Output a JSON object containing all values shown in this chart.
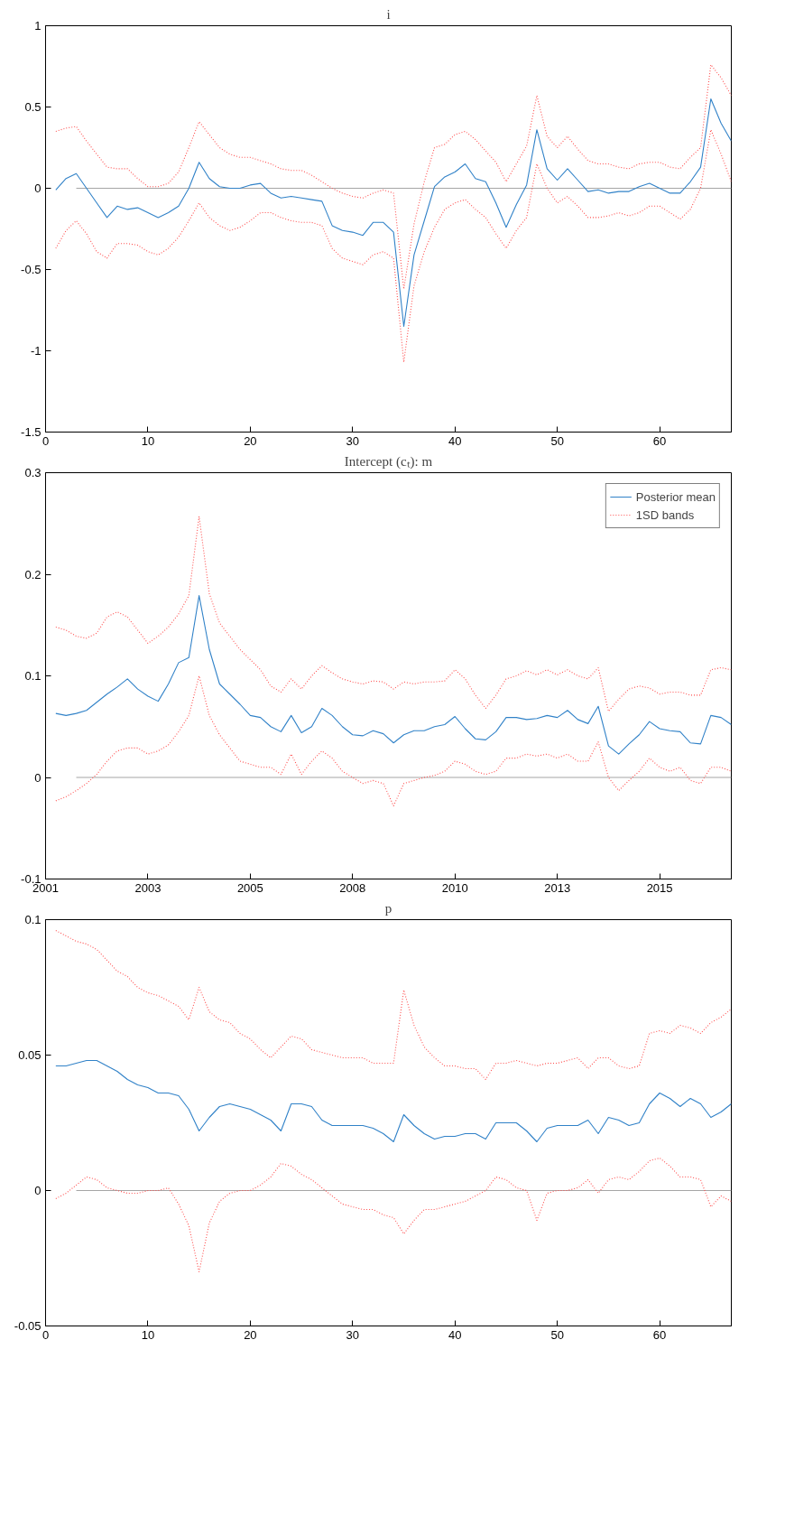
{
  "chart_data": [
    {
      "type": "line",
      "title": "i",
      "xlim": [
        0,
        67
      ],
      "xticks": [
        0,
        10,
        20,
        30,
        40,
        50,
        60
      ],
      "ylim": [
        -1.5,
        1
      ],
      "yticks": [
        -1.5,
        -1,
        -0.5,
        0,
        0.5,
        1
      ],
      "x": [
        1,
        2,
        3,
        4,
        5,
        6,
        7,
        8,
        9,
        10,
        11,
        12,
        13,
        14,
        15,
        16,
        17,
        18,
        19,
        20,
        21,
        22,
        23,
        24,
        25,
        26,
        27,
        28,
        29,
        30,
        31,
        32,
        33,
        34,
        35,
        36,
        37,
        38,
        39,
        40,
        41,
        42,
        43,
        44,
        45,
        46,
        47,
        48,
        49,
        50,
        51,
        52,
        53,
        54,
        55,
        56,
        57,
        58,
        59,
        60,
        61,
        62,
        63,
        64,
        65,
        66,
        67
      ],
      "series": [
        {
          "color": "#a6a6a6",
          "line_style": "solid",
          "values": [
            null,
            null,
            0,
            0,
            0,
            0,
            0,
            0,
            0,
            0,
            0,
            0,
            0,
            0,
            0,
            0,
            0,
            0,
            0,
            0,
            0,
            0,
            0,
            0,
            0,
            0,
            0,
            0,
            0,
            0,
            0,
            0,
            0,
            0,
            0,
            0,
            0,
            0,
            0,
            0,
            0,
            0,
            0,
            0,
            0,
            0,
            0,
            0,
            0,
            0,
            0,
            0,
            0,
            0,
            0,
            0,
            0,
            0,
            0,
            0,
            0,
            0,
            0,
            0,
            0,
            0,
            0
          ]
        },
        {
          "color": "#ff4d4d",
          "line_style": "dotted",
          "values": [
            0.35,
            0.37,
            0.38,
            0.29,
            0.21,
            0.13,
            0.12,
            0.12,
            0.06,
            0.01,
            0.01,
            0.03,
            0.1,
            0.25,
            0.41,
            0.33,
            0.25,
            0.21,
            0.19,
            0.19,
            0.17,
            0.15,
            0.12,
            0.11,
            0.11,
            0.08,
            0.04,
            0,
            -0.03,
            -0.05,
            -0.06,
            -0.03,
            -0.01,
            -0.03,
            -0.62,
            -0.22,
            0.04,
            0.25,
            0.27,
            0.33,
            0.35,
            0.3,
            0.23,
            0.16,
            0.04,
            0.15,
            0.26,
            0.57,
            0.32,
            0.25,
            0.32,
            0.24,
            0.17,
            0.15,
            0.15,
            0.13,
            0.12,
            0.15,
            0.16,
            0.16,
            0.13,
            0.12,
            0.19,
            0.25,
            0.76,
            0.68,
            0.57
          ]
        },
        {
          "color": "#ff4d4d",
          "line_style": "dotted",
          "values": [
            -0.37,
            -0.26,
            -0.2,
            -0.28,
            -0.39,
            -0.43,
            -0.34,
            -0.34,
            -0.35,
            -0.39,
            -0.41,
            -0.37,
            -0.3,
            -0.2,
            -0.09,
            -0.18,
            -0.23,
            -0.26,
            -0.24,
            -0.2,
            -0.15,
            -0.15,
            -0.18,
            -0.2,
            -0.21,
            -0.21,
            -0.23,
            -0.37,
            -0.43,
            -0.45,
            -0.47,
            -0.41,
            -0.39,
            -0.43,
            -1.07,
            -0.6,
            -0.39,
            -0.24,
            -0.13,
            -0.09,
            -0.07,
            -0.13,
            -0.18,
            -0.28,
            -0.37,
            -0.26,
            -0.18,
            0.15,
            0,
            -0.09,
            -0.05,
            -0.11,
            -0.18,
            -0.18,
            -0.17,
            -0.15,
            -0.17,
            -0.15,
            -0.11,
            -0.11,
            -0.15,
            -0.19,
            -0.13,
            0,
            0.36,
            0.21,
            0.04
          ]
        },
        {
          "color": "#3182c8",
          "line_style": "solid",
          "values": [
            -0.01,
            0.06,
            0.09,
            0,
            -0.09,
            -0.18,
            -0.11,
            -0.13,
            -0.12,
            -0.15,
            -0.18,
            -0.15,
            -0.11,
            0,
            0.16,
            0.06,
            0.01,
            0,
            0,
            0.02,
            0.03,
            -0.03,
            -0.06,
            -0.05,
            -0.06,
            -0.07,
            -0.08,
            -0.23,
            -0.26,
            -0.27,
            -0.29,
            -0.21,
            -0.21,
            -0.27,
            -0.85,
            -0.41,
            -0.2,
            0.01,
            0.07,
            0.1,
            0.15,
            0.06,
            0.04,
            -0.09,
            -0.24,
            -0.1,
            0.02,
            0.36,
            0.12,
            0.05,
            0.12,
            0.05,
            -0.02,
            -0.01,
            -0.03,
            -0.02,
            -0.02,
            0.01,
            0.03,
            0,
            -0.03,
            -0.03,
            0.04,
            0.13,
            0.55,
            0.4,
            0.29
          ]
        }
      ]
    },
    {
      "type": "line",
      "title": "Intercept (cₜ): m",
      "legend": "top right",
      "ylim": [
        -0.1,
        0.3
      ],
      "yticks": [
        -0.1,
        0,
        0.1,
        0.2,
        0.3
      ],
      "categories": [
        "2001",
        null,
        null,
        null,
        null,
        null,
        null,
        null,
        null,
        null,
        "2003",
        null,
        null,
        null,
        null,
        null,
        null,
        null,
        null,
        null,
        "2005",
        null,
        null,
        null,
        null,
        null,
        null,
        null,
        null,
        null,
        "2008",
        null,
        null,
        null,
        null,
        null,
        null,
        null,
        null,
        null,
        "2010",
        null,
        null,
        null,
        null,
        null,
        null,
        null,
        null,
        null,
        "2013",
        null,
        null,
        null,
        null,
        null,
        null,
        null,
        null,
        null,
        "2015",
        null,
        null,
        null,
        null,
        null,
        null,
        null
      ],
      "series": [
        {
          "color": "#a6a6a6",
          "line_style": "solid",
          "values": [
            null,
            null,
            null,
            0,
            0,
            0,
            0,
            0,
            0,
            0,
            0,
            0,
            0,
            0,
            0,
            0,
            0,
            0,
            0,
            0,
            0,
            0,
            0,
            0,
            0,
            0,
            0,
            0,
            0,
            0,
            0,
            0,
            0,
            0,
            0,
            0,
            0,
            0,
            0,
            0,
            0,
            0,
            0,
            0,
            0,
            0,
            0,
            0,
            0,
            0,
            0,
            0,
            0,
            0,
            0,
            0,
            0,
            0,
            0,
            0,
            0,
            0,
            0,
            0,
            0,
            0,
            0,
            0
          ]
        },
        {
          "name": "Posterior mean",
          "color": "#3182c8",
          "line_style": "solid",
          "values": [
            null,
            0.063,
            0.061,
            0.063,
            0.066,
            0.074,
            0.082,
            0.089,
            0.097,
            0.087,
            0.08,
            0.075,
            0.092,
            0.113,
            0.118,
            0.179,
            0.126,
            0.092,
            0.082,
            0.072,
            0.061,
            0.059,
            0.05,
            0.045,
            0.061,
            0.044,
            0.05,
            0.068,
            0.061,
            0.05,
            0.042,
            0.041,
            0.046,
            0.043,
            0.034,
            0.042,
            0.046,
            0.046,
            0.05,
            0.052,
            0.06,
            0.048,
            0.038,
            0.037,
            0.045,
            0.059,
            0.059,
            0.057,
            0.058,
            0.061,
            0.059,
            0.066,
            0.057,
            0.053,
            0.07,
            0.031,
            0.023,
            0.033,
            0.042,
            0.055,
            0.048,
            0.046,
            0.045,
            0.034,
            0.033,
            0.061,
            0.059,
            0.052
          ]
        },
        {
          "name": "1SD bands",
          "color": "#ff4d4d",
          "line_style": "dotted",
          "values": [
            null,
            0.148,
            0.145,
            0.139,
            0.137,
            0.142,
            0.158,
            0.163,
            0.158,
            0.145,
            0.132,
            0.139,
            0.148,
            0.161,
            0.179,
            0.257,
            0.181,
            0.152,
            0.139,
            0.126,
            0.116,
            0.106,
            0.09,
            0.084,
            0.097,
            0.087,
            0.1,
            0.11,
            0.103,
            0.097,
            0.094,
            0.092,
            0.095,
            0.094,
            0.087,
            0.094,
            0.092,
            0.094,
            0.094,
            0.095,
            0.106,
            0.097,
            0.081,
            0.068,
            0.081,
            0.097,
            0.1,
            0.105,
            0.101,
            0.106,
            0.101,
            0.106,
            0.1,
            0.097,
            0.108,
            0.065,
            0.077,
            0.087,
            0.09,
            0.088,
            0.082,
            0.084,
            0.084,
            0.081,
            0.081,
            0.106,
            0.108,
            0.106
          ]
        },
        {
          "color": "#ff4d4d",
          "line_style": "dotted",
          "values": [
            null,
            -0.023,
            -0.019,
            -0.013,
            -0.006,
            0.003,
            0.016,
            0.026,
            0.029,
            0.029,
            0.023,
            0.026,
            0.032,
            0.045,
            0.061,
            0.1,
            0.061,
            0.042,
            0.029,
            0.016,
            0.013,
            0.01,
            0.01,
            0.003,
            0.023,
            0.003,
            0.016,
            0.026,
            0.019,
            0.006,
            0.0,
            -0.006,
            -0.003,
            -0.006,
            -0.028,
            -0.006,
            -0.003,
            0.0,
            0.002,
            0.006,
            0.016,
            0.013,
            0.006,
            0.003,
            0.006,
            0.019,
            0.019,
            0.023,
            0.021,
            0.023,
            0.019,
            0.023,
            0.016,
            0.016,
            0.035,
            0.0,
            -0.013,
            -0.003,
            0.006,
            0.019,
            0.01,
            0.006,
            0.01,
            -0.003,
            -0.006,
            0.01,
            0.01,
            0.006
          ]
        }
      ]
    },
    {
      "type": "line",
      "title": "p",
      "xlim": [
        0,
        67
      ],
      "xticks": [
        0,
        10,
        20,
        30,
        40,
        50,
        60
      ],
      "ylim": [
        -0.05,
        0.1
      ],
      "yticks": [
        -0.05,
        0,
        0.05,
        0.1
      ],
      "x": [
        1,
        2,
        3,
        4,
        5,
        6,
        7,
        8,
        9,
        10,
        11,
        12,
        13,
        14,
        15,
        16,
        17,
        18,
        19,
        20,
        21,
        22,
        23,
        24,
        25,
        26,
        27,
        28,
        29,
        30,
        31,
        32,
        33,
        34,
        35,
        36,
        37,
        38,
        39,
        40,
        41,
        42,
        43,
        44,
        45,
        46,
        47,
        48,
        49,
        50,
        51,
        52,
        53,
        54,
        55,
        56,
        57,
        58,
        59,
        60,
        61,
        62,
        63,
        64,
        65,
        66,
        67
      ],
      "series": [
        {
          "color": "#a6a6a6",
          "line_style": "solid",
          "values": [
            null,
            null,
            0,
            0,
            0,
            0,
            0,
            0,
            0,
            0,
            0,
            0,
            0,
            0,
            0,
            0,
            0,
            0,
            0,
            0,
            0,
            0,
            0,
            0,
            0,
            0,
            0,
            0,
            0,
            0,
            0,
            0,
            0,
            0,
            0,
            0,
            0,
            0,
            0,
            0,
            0,
            0,
            0,
            0,
            0,
            0,
            0,
            0,
            0,
            0,
            0,
            0,
            0,
            0,
            0,
            0,
            0,
            0,
            0,
            0,
            0,
            0,
            0,
            0,
            0,
            0,
            0
          ]
        },
        {
          "color": "#ff4d4d",
          "line_style": "dotted",
          "values": [
            0.096,
            0.094,
            0.092,
            0.091,
            0.089,
            0.085,
            0.081,
            0.079,
            0.075,
            0.073,
            0.072,
            0.07,
            0.068,
            0.063,
            0.075,
            0.066,
            0.063,
            0.062,
            0.058,
            0.056,
            0.052,
            0.049,
            0.053,
            0.057,
            0.056,
            0.052,
            0.051,
            0.05,
            0.049,
            0.049,
            0.049,
            0.047,
            0.047,
            0.047,
            0.074,
            0.061,
            0.053,
            0.049,
            0.046,
            0.046,
            0.045,
            0.045,
            0.041,
            0.047,
            0.047,
            0.048,
            0.047,
            0.046,
            0.047,
            0.047,
            0.048,
            0.049,
            0.045,
            0.049,
            0.049,
            0.046,
            0.045,
            0.046,
            0.058,
            0.059,
            0.058,
            0.061,
            0.06,
            0.058,
            0.062,
            0.064,
            0.067
          ]
        },
        {
          "color": "#ff4d4d",
          "line_style": "dotted",
          "values": [
            -0.003,
            -0.001,
            0.002,
            0.005,
            0.004,
            0.001,
            0,
            -0.001,
            -0.001,
            0,
            0,
            0.001,
            -0.005,
            -0.013,
            -0.03,
            -0.012,
            -0.004,
            -0.001,
            0,
            0,
            0.002,
            0.005,
            0.01,
            0.009,
            0.006,
            0.004,
            0.001,
            -0.002,
            -0.005,
            -0.006,
            -0.007,
            -0.007,
            -0.009,
            -0.01,
            -0.016,
            -0.011,
            -0.007,
            -0.007,
            -0.006,
            -0.005,
            -0.004,
            -0.002,
            0,
            0.005,
            0.004,
            0.001,
            0,
            -0.011,
            -0.001,
            0,
            0,
            0.001,
            0.004,
            -0.001,
            0.004,
            0.005,
            0.004,
            0.007,
            0.011,
            0.012,
            0.009,
            0.005,
            0.005,
            0.004,
            -0.006,
            -0.002,
            -0.004
          ]
        },
        {
          "color": "#3182c8",
          "line_style": "solid",
          "values": [
            0.046,
            0.046,
            0.047,
            0.048,
            0.048,
            0.046,
            0.044,
            0.041,
            0.039,
            0.038,
            0.036,
            0.036,
            0.035,
            0.03,
            0.022,
            0.027,
            0.031,
            0.032,
            0.031,
            0.03,
            0.028,
            0.026,
            0.022,
            0.032,
            0.032,
            0.031,
            0.026,
            0.024,
            0.024,
            0.024,
            0.024,
            0.023,
            0.021,
            0.018,
            0.028,
            0.024,
            0.021,
            0.019,
            0.02,
            0.02,
            0.021,
            0.021,
            0.019,
            0.025,
            0.025,
            0.025,
            0.022,
            0.018,
            0.023,
            0.024,
            0.024,
            0.024,
            0.026,
            0.021,
            0.027,
            0.026,
            0.024,
            0.025,
            0.032,
            0.036,
            0.034,
            0.031,
            0.034,
            0.032,
            0.027,
            0.029,
            0.032
          ]
        }
      ]
    }
  ]
}
